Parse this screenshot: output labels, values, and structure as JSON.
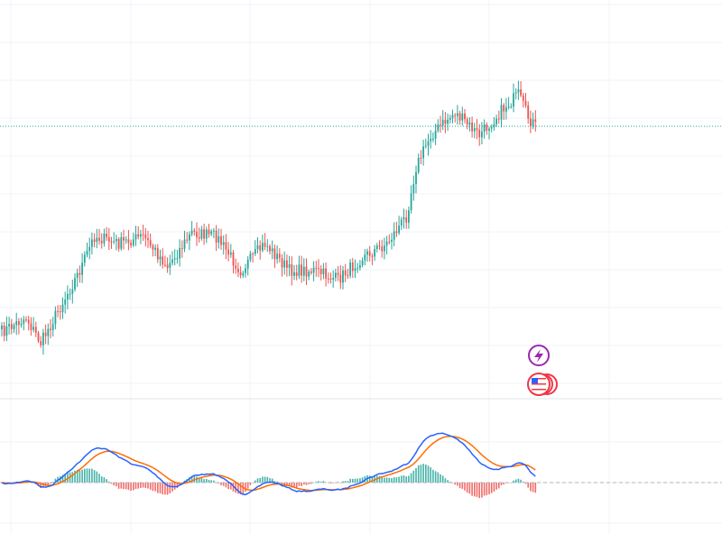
{
  "chart_data": [
    {
      "type": "candlestick",
      "title": "",
      "series_count": 220,
      "price_levels": [
        {
          "slot": 0,
          "close": 368
        },
        {
          "slot": 10,
          "close": 352
        },
        {
          "slot": 16,
          "close": 380
        },
        {
          "slot": 26,
          "close": 330
        },
        {
          "slot": 32,
          "close": 300
        },
        {
          "slot": 38,
          "close": 262
        },
        {
          "slot": 48,
          "close": 270
        },
        {
          "slot": 58,
          "close": 262
        },
        {
          "slot": 68,
          "close": 295
        },
        {
          "slot": 78,
          "close": 258
        },
        {
          "slot": 88,
          "close": 262
        },
        {
          "slot": 98,
          "close": 300
        },
        {
          "slot": 108,
          "close": 270
        },
        {
          "slot": 118,
          "close": 300
        },
        {
          "slot": 128,
          "close": 300
        },
        {
          "slot": 138,
          "close": 310
        },
        {
          "slot": 148,
          "close": 285
        },
        {
          "slot": 158,
          "close": 270
        },
        {
          "slot": 166,
          "close": 240
        },
        {
          "slot": 170,
          "close": 185
        },
        {
          "slot": 176,
          "close": 150
        },
        {
          "slot": 186,
          "close": 125
        },
        {
          "slot": 196,
          "close": 150
        },
        {
          "slot": 206,
          "close": 120
        },
        {
          "slot": 212,
          "close": 105
        },
        {
          "slot": 216,
          "close": 130
        },
        {
          "slot": 219,
          "close": 140
        }
      ],
      "last_price_line": "dotted",
      "grid": true,
      "colors": {
        "up": "#26a69a",
        "down": "#ef5350",
        "last_price": "#26a69a",
        "grid": "#f0f3fa"
      }
    },
    {
      "type": "line",
      "indicator": "oscillator",
      "series": [
        {
          "color": "#2962ff"
        },
        {
          "color": "#ff6d00"
        }
      ],
      "histogram": {
        "up_color": "#26a69a",
        "down_color": "#ef5350"
      },
      "zero_line": "dashed",
      "grid": true
    }
  ],
  "markers": [
    {
      "icon": "lightning-icon",
      "color": "#9c27b0"
    },
    {
      "icon": "us-flag-icon",
      "color": "#f23645"
    }
  ]
}
